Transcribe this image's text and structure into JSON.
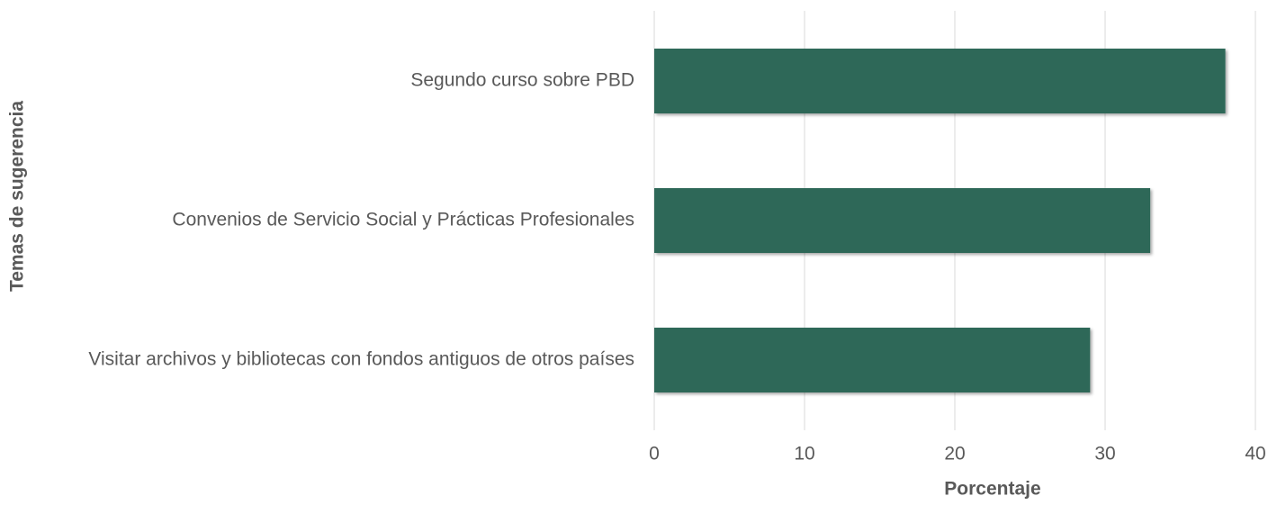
{
  "chart_data": {
    "type": "bar",
    "orientation": "horizontal",
    "categories": [
      "Segundo curso sobre PBD",
      "Convenios de Servicio Social y Prácticas Profesionales",
      "Visitar archivos y bibliotecas con fondos antiguos de otros países"
    ],
    "values": [
      38,
      33,
      29
    ],
    "color": "#2e6859",
    "xlabel": "Porcentaje",
    "ylabel": "Temas de sugerencia",
    "xlim": [
      0,
      40
    ],
    "xticks": [
      0,
      10,
      20,
      30,
      40
    ],
    "grid": true
  }
}
